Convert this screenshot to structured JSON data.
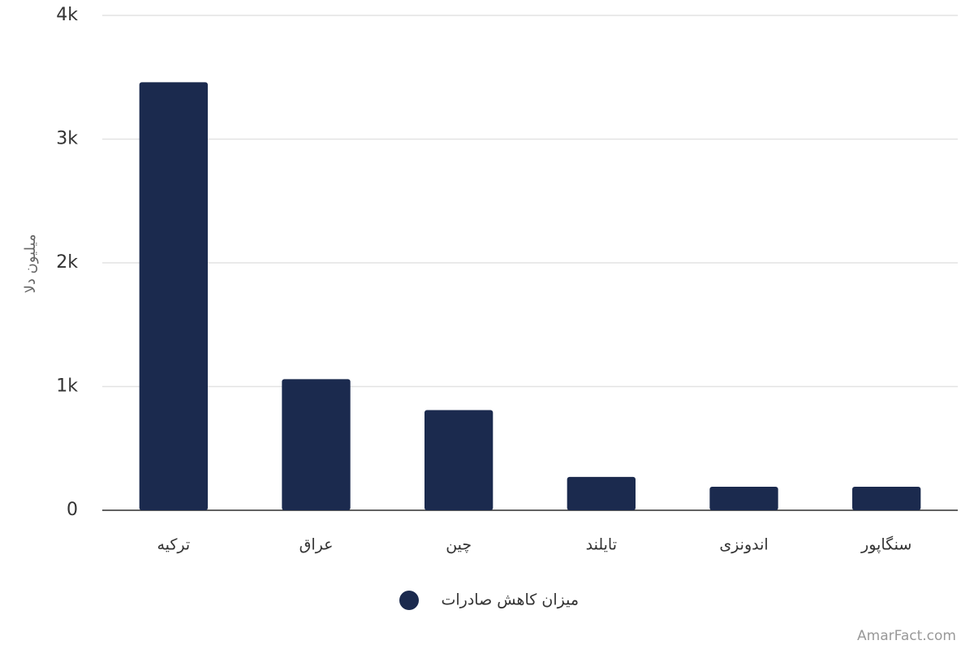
{
  "chart_data": {
    "type": "bar",
    "y_label": "میلیون دلا",
    "categories": [
      "ترکیه",
      "عراق",
      "چین",
      "تایلند",
      "اندونزی",
      "سنگاپور"
    ],
    "series": [
      {
        "name": "میزان کاهش صادرات",
        "color": "#1b2a4e",
        "values": [
          3460,
          1060,
          810,
          270,
          190,
          190
        ]
      }
    ],
    "ylim": [
      0,
      4000
    ],
    "yticks": [
      0,
      {
        "value": 1000,
        "label": "1k"
      },
      {
        "value": 2000,
        "label": "2k"
      },
      {
        "value": 3000,
        "label": "3k"
      },
      {
        "value": 4000,
        "label": "4k"
      }
    ],
    "grid": true,
    "legend": "bottom"
  },
  "watermark": "AmarFact.com"
}
